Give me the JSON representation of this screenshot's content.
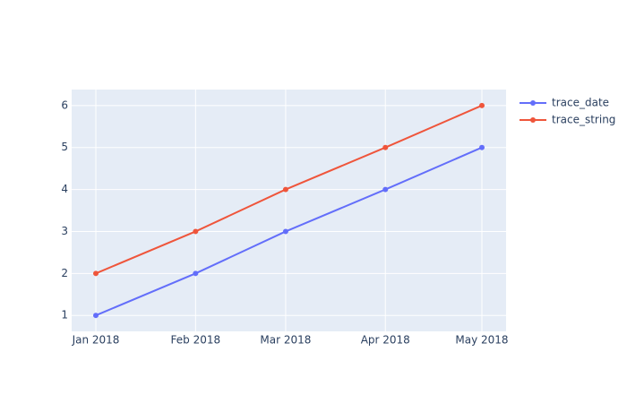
{
  "chart_data": {
    "type": "line",
    "x": [
      "Jan 2018",
      "Feb 2018",
      "Mar 2018",
      "Apr 2018",
      "May 2018"
    ],
    "series": [
      {
        "name": "trace_date",
        "color": "#636efa",
        "values": [
          1,
          2,
          3,
          4,
          5
        ]
      },
      {
        "name": "trace_string",
        "color": "#ef553b",
        "values": [
          2,
          3,
          4,
          5,
          6
        ]
      }
    ],
    "ylim": [
      0.62,
      6.38
    ],
    "yticks": [
      1,
      2,
      3,
      4,
      5,
      6
    ],
    "grid": true,
    "legend": "right"
  }
}
